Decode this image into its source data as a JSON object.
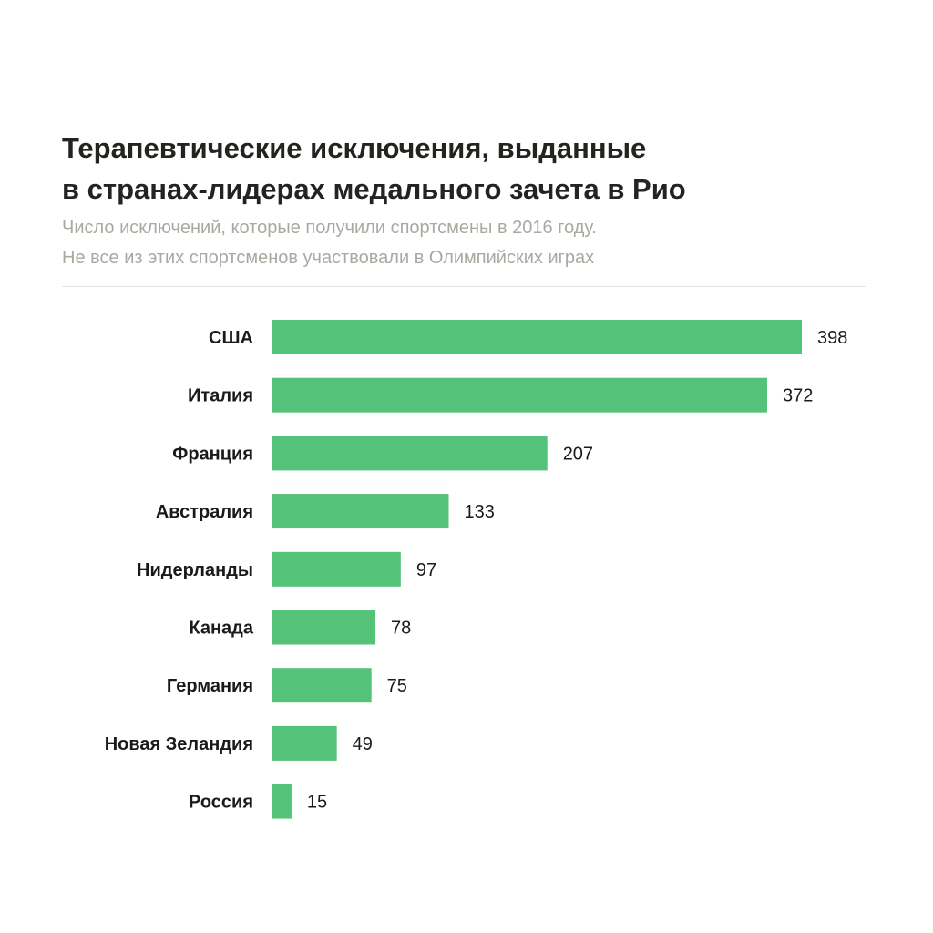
{
  "chart_data": {
    "type": "bar",
    "orientation": "horizontal",
    "title": "Терапевтические исключения, выданные в странах-лидерах медального зачета в Рио",
    "title_lines": [
      "Терапевтические исключения, выданные",
      "в странах-лидерах медального зачета в Рио"
    ],
    "subtitle_lines": [
      "Число исключений, которые получили спортсмены в 2016 году.",
      "Не все из этих спортсменов участвовали в Олимпийских играх"
    ],
    "categories": [
      "США",
      "Италия",
      "Франция",
      "Австралия",
      "Нидерланды",
      "Канада",
      "Германия",
      "Новая Зеландия",
      "Россия"
    ],
    "values": [
      398,
      372,
      207,
      133,
      97,
      78,
      75,
      49,
      15
    ],
    "xlim": [
      0,
      398
    ],
    "grid": false,
    "data_labels": true,
    "bar_color": "#55c27a"
  }
}
